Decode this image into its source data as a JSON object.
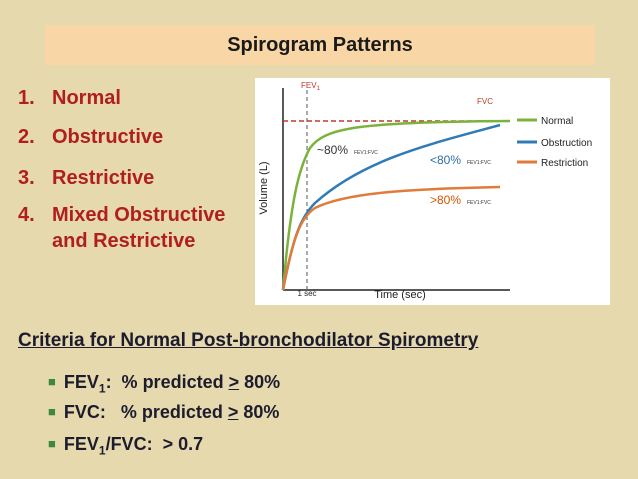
{
  "header": {
    "title": "Spirogram Patterns"
  },
  "list": [
    {
      "number": "1.",
      "text": "Normal"
    },
    {
      "number": "2.",
      "text": "Obstructive"
    },
    {
      "number": "3.",
      "text": "Restrictive"
    },
    {
      "number": "4.",
      "text": "Mixed Obstructive and Restrictive"
    }
  ],
  "figure": {
    "y_label": "Volume (L)",
    "x_label": "Time (sec)",
    "fev_label": "FEV",
    "fev_sub": "1",
    "fvc_label": "FVC",
    "tick_label": "1 sec",
    "normal_ratio": "~80%",
    "obstruction_ratio": "<80%",
    "restriction_ratio": ">80%",
    "ratio_note": "FEV1:FVC",
    "legend": [
      "Normal",
      "Obstruction",
      "Restriction"
    ]
  },
  "criteria": {
    "heading": "Criteria for Normal  Post-bronchodilator Spirometry",
    "items": [
      {
        "name": "FEV",
        "sub": "1",
        "rest": ":  % predicted ",
        "op": ">",
        "value": " 80%"
      },
      {
        "name": "FVC:",
        "sub": "",
        "rest": "   % predicted ",
        "op": ">",
        "value": " 80%"
      },
      {
        "name": "FEV",
        "sub": "1",
        "rest": "/FVC:  ",
        "op": "",
        "value": "> 0.7"
      }
    ]
  }
}
